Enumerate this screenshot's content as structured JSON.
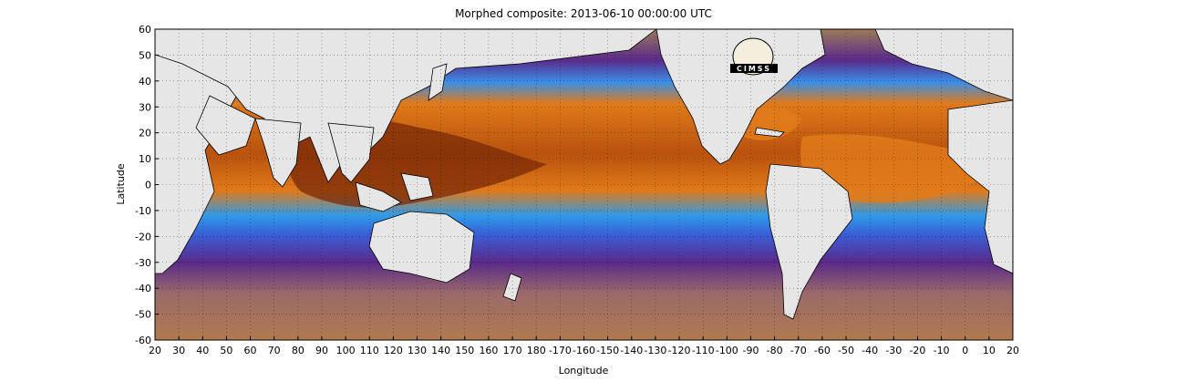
{
  "map": {
    "title": "Morphed composite: 2013-06-10 00:00:00 UTC",
    "xlabel": "Longitude",
    "ylabel": "Latitude",
    "x_tick_labels": [
      "20",
      "30",
      "40",
      "50",
      "60",
      "70",
      "80",
      "90",
      "100",
      "110",
      "120",
      "130",
      "140",
      "150",
      "160",
      "170",
      "180",
      "-170",
      "-160",
      "-150",
      "-140",
      "-130",
      "-120",
      "-110",
      "-100",
      "-90",
      "-80",
      "-70",
      "-60",
      "-50",
      "-40",
      "-30",
      "-20",
      "-10",
      "0",
      "10",
      "20"
    ],
    "y_tick_labels": [
      "60",
      "50",
      "40",
      "30",
      "20",
      "10",
      "0",
      "-10",
      "-20",
      "-30",
      "-40",
      "-50",
      "-60"
    ],
    "logo_text": "CIMSS",
    "colors": {
      "land": "#e6e6e6",
      "deep_moisture": "#7a2a08",
      "high_moisture": "#e07a1a",
      "mid_moisture": "#3a8ee8",
      "low_moisture": "#5a2a8a",
      "dry": "#a0785a"
    }
  }
}
